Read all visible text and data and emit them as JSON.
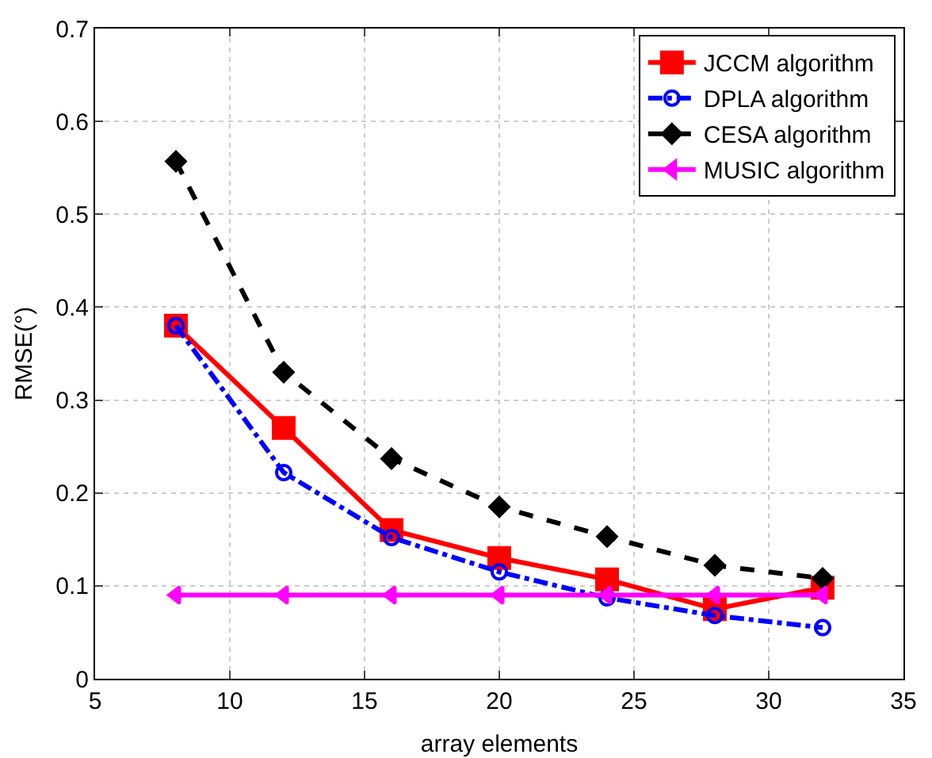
{
  "chart_data": {
    "type": "line",
    "xlabel": "array elements",
    "ylabel": "RMSE(°)",
    "x": [
      8,
      12,
      16,
      20,
      24,
      28,
      32
    ],
    "series": [
      {
        "name": "JCCM algorithm",
        "color": "#ff0000",
        "marker": "square",
        "line_style": "solid",
        "values": [
          0.38,
          0.27,
          0.16,
          0.13,
          0.107,
          0.075,
          0.098
        ]
      },
      {
        "name": "DPLA algorithm",
        "color": "#0000ff",
        "marker": "circle",
        "line_style": "dashdot",
        "values": [
          0.38,
          0.222,
          0.152,
          0.115,
          0.087,
          0.068,
          0.055
        ]
      },
      {
        "name": "CESA algorithm",
        "color": "#000000",
        "marker": "diamond",
        "line_style": "dashed",
        "values": [
          0.557,
          0.33,
          0.237,
          0.185,
          0.153,
          0.122,
          0.108
        ]
      },
      {
        "name": "MUSIC algorithm",
        "color": "#ff00ff",
        "marker": "triangle",
        "line_style": "solid",
        "values": [
          0.09,
          0.09,
          0.09,
          0.09,
          0.09,
          0.09,
          0.09
        ]
      }
    ],
    "xlim": [
      5,
      35
    ],
    "xticks": [
      5,
      10,
      15,
      20,
      25,
      30,
      35
    ],
    "ylim": [
      0,
      0.7
    ],
    "yticks": [
      0,
      0.1,
      0.2,
      0.3,
      0.4,
      0.5,
      0.6,
      0.7
    ],
    "grid": true,
    "legend": "top right"
  }
}
